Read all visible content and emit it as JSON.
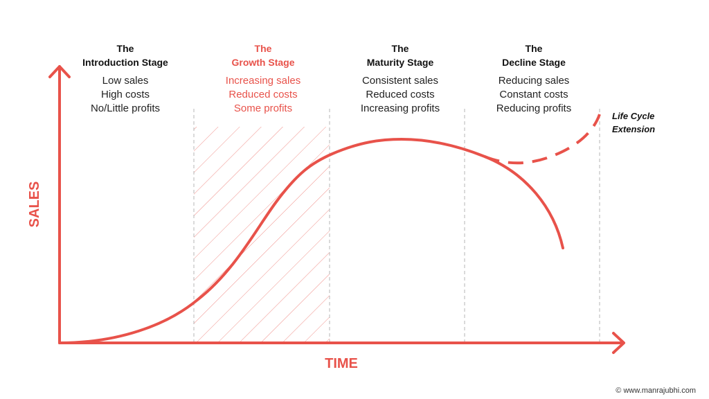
{
  "colors": {
    "accent": "#e8524a",
    "text": "#111111",
    "divider": "#b5b5b5"
  },
  "axes": {
    "y_label": "SALES",
    "x_label": "TIME"
  },
  "stages": [
    {
      "title_line1": "The",
      "title_line2": "Introduction Stage",
      "highlighted": false,
      "lines": [
        "Low sales",
        "High costs",
        "No/Little profits"
      ]
    },
    {
      "title_line1": "The",
      "title_line2": "Growth Stage",
      "highlighted": true,
      "lines": [
        "Increasing sales",
        "Reduced costs",
        "Some profits"
      ]
    },
    {
      "title_line1": "The",
      "title_line2": "Maturity Stage",
      "highlighted": false,
      "lines": [
        "Consistent sales",
        "Reduced costs",
        "Increasing profits"
      ]
    },
    {
      "title_line1": "The",
      "title_line2": "Decline Stage",
      "highlighted": false,
      "lines": [
        "Reducing sales",
        "Constant costs",
        "Reducing profits"
      ]
    }
  ],
  "extension": {
    "line1": "Life Cycle",
    "line2": "Extension"
  },
  "credit": "© www.manrajubhi.com"
}
